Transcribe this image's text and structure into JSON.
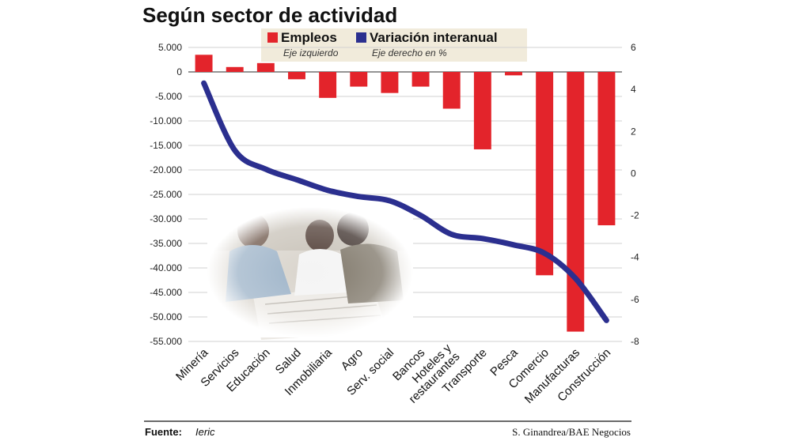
{
  "title": "Según sector de actividad",
  "legend": {
    "employment": {
      "label": "Empleos",
      "sub": "Eje izquierdo",
      "color": "#e3242b"
    },
    "variation": {
      "label": "Variación interanual",
      "sub": "Eje derecho en %",
      "color": "#2b2f8f"
    }
  },
  "footer": {
    "label": "Fuente:",
    "source": "Ieric",
    "credit": "S. Ginandrea/BAE Negocios"
  },
  "photo": {
    "icon": "people-reading-newspaper-photo"
  },
  "chart_data": {
    "type": "bar+line",
    "categories": [
      "Minería",
      "Servicios",
      "Educación",
      "Salud",
      "Inmobiliaria",
      "Agro",
      "Serv. social",
      "Bancos",
      "Hoteles y restaurantes",
      "Transporte",
      "Pesca",
      "Comercio",
      "Manufacturas",
      "Construcción"
    ],
    "category_lines": [
      [
        "Minería"
      ],
      [
        "Servicios"
      ],
      [
        "Educación"
      ],
      [
        "Salud"
      ],
      [
        "Inmobiliaria"
      ],
      [
        "Agro"
      ],
      [
        "Serv. social"
      ],
      [
        "Bancos"
      ],
      [
        "Hoteles y",
        "restaurantes"
      ],
      [
        "Transporte"
      ],
      [
        "Pesca"
      ],
      [
        "Comercio"
      ],
      [
        "Manufacturas"
      ],
      [
        "Construcción"
      ]
    ],
    "series": [
      {
        "name": "Empleos",
        "type": "bar",
        "axis": "left",
        "values": [
          3500,
          1000,
          1800,
          -1500,
          -5300,
          -3000,
          -4300,
          -3000,
          -7500,
          -15800,
          -700,
          -41500,
          -53000,
          -31300
        ]
      },
      {
        "name": "Variación interanual",
        "type": "line",
        "axis": "right",
        "values": [
          4.3,
          1.1,
          0.2,
          -0.3,
          -0.8,
          -1.1,
          -1.3,
          -2.0,
          -2.9,
          -3.1,
          -3.4,
          -3.8,
          -5.0,
          -7.0
        ]
      }
    ],
    "y_left": {
      "min": -55000,
      "max": 5000,
      "step": 5000,
      "ticks": [
        "5.000",
        "0",
        "-5.000",
        "-10.000",
        "-15.000",
        "-20.000",
        "-25.000",
        "-30.000",
        "-35.000",
        "-40.000",
        "-45.000",
        "-50.000",
        "-55.000"
      ]
    },
    "y_right": {
      "min": -8,
      "max": 6,
      "step": 2,
      "ticks": [
        "6",
        "4",
        "2",
        "0",
        "-2",
        "-4",
        "-6",
        "-8"
      ]
    },
    "grid": true
  }
}
